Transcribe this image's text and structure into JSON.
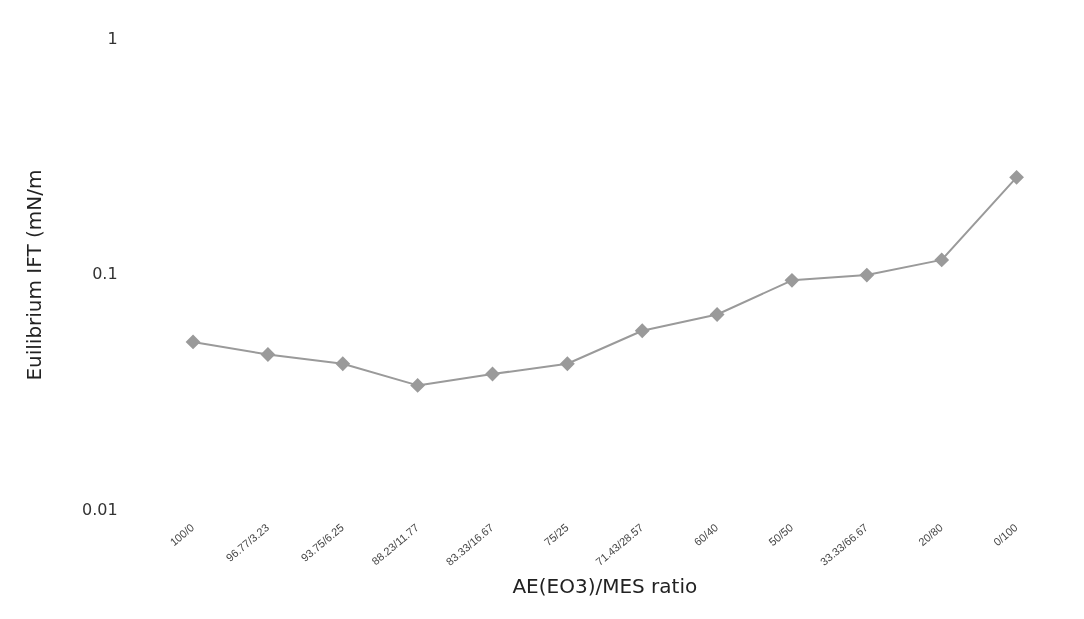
{
  "chart_data": {
    "type": "line",
    "xlabel": "AE(EO3)/MES ratio",
    "ylabel": "Euilibrium IFT (mN/m",
    "categories": [
      "100/0",
      "96.77/3.23",
      "93.75/6.25",
      "88.23/11.77",
      "83.33/16.67",
      "75/25",
      "71.43/28.57",
      "60/40",
      "50/50",
      "33.33/66.67",
      "20/80",
      "0/100"
    ],
    "series": [
      {
        "color": "#9a9a9a",
        "values": [
          0.052,
          0.046,
          0.042,
          0.034,
          0.038,
          0.042,
          0.058,
          0.068,
          0.095,
          0.1,
          0.116,
          0.26
        ]
      }
    ],
    "log": "y",
    "ylim": [
      0.01,
      1
    ],
    "yticks": [
      0.01,
      0.1,
      1
    ],
    "grid": false,
    "legend": false,
    "marker": "diamond",
    "line_style": "solid"
  }
}
